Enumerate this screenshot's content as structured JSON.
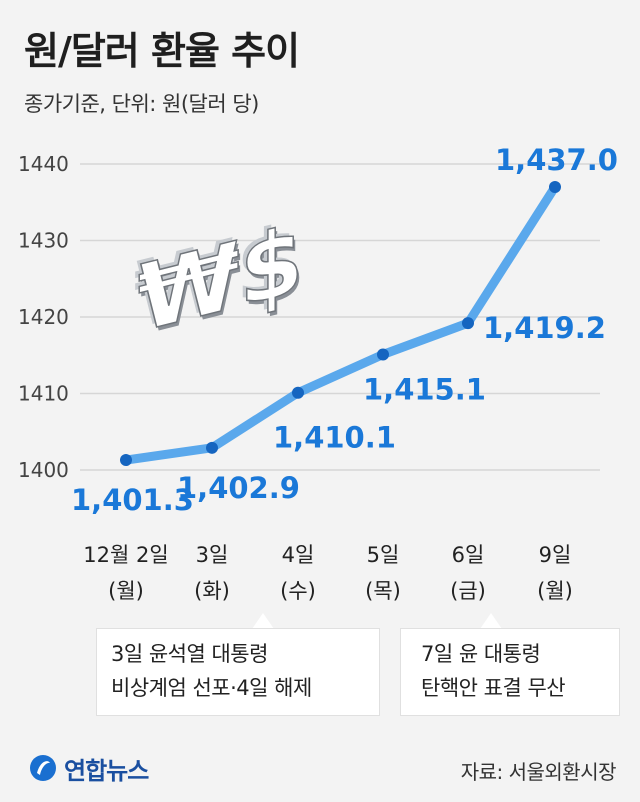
{
  "header": {
    "title": "원/달러 환율 추이",
    "subtitle": "종가기준, 단위: 원(달러 당)"
  },
  "chart_data": {
    "type": "line",
    "title": "원/달러 환율 추이",
    "subtitle": "종가기준, 단위: 원(달러 당)",
    "categories": [
      "12월 2일 (월)",
      "3일 (화)",
      "4일 (수)",
      "5일 (목)",
      "6일 (금)",
      "9일 (월)"
    ],
    "category_lines": [
      [
        "12월 2일",
        "(월)"
      ],
      [
        "3일",
        "(화)"
      ],
      [
        "4일",
        "(수)"
      ],
      [
        "5일",
        "(목)"
      ],
      [
        "6일",
        "(금)"
      ],
      [
        "9일",
        "(월)"
      ]
    ],
    "values": [
      1401.3,
      1402.9,
      1410.1,
      1415.1,
      1419.2,
      1437.0
    ],
    "data_labels": [
      "1,401.3",
      "1,402.9",
      "1,410.1",
      "1,415.1",
      "1,419.2",
      "1,437.0"
    ],
    "yticks": [
      1400,
      1410,
      1420,
      1430,
      1440
    ],
    "ylim": [
      1400,
      1440
    ],
    "grid": true,
    "line_color": "#5aa8ec",
    "point_color": "#1565c0",
    "label_color": "#1a78d8"
  },
  "annotations": {
    "note1_line1": "3일 윤석열 대통령",
    "note1_line2": "비상계엄 선포·4일 해제",
    "note2_line1": "7일 윤 대통령",
    "note2_line2": "탄핵안 표결 무산"
  },
  "decoration": {
    "icon": "won-dollar-symbol",
    "symbols": "₩$"
  },
  "footer": {
    "logo_text": "연합뉴스",
    "source": "자료: 서울외환시장"
  }
}
